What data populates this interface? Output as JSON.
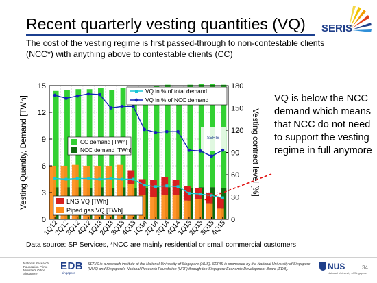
{
  "slide": {
    "title": "Recent quarterly vesting quantities (VQ)",
    "subtitle": "The cost of the vesting regime is first passed-through to non-contestable clients (NCC*) with anything above to contestable clients (CC)",
    "callout": "VQ is below the NCC demand which means that NCC do not need to support the vesting regime in full anymore",
    "source": "Data source: SP Services, *NCC are mainly residential or small commercial customers",
    "page_number": "34",
    "logo_text": "SERIS",
    "watermark_text": "SERIS"
  },
  "footer": {
    "nrf_text": "National Research Foundation Prime Minister's Office Singapore",
    "edb_text": "EDB",
    "edb_sub": "singapore",
    "description": "SERIS is a research institute at the National University of Singapore (NUS). SERIS is sponsored by the National University of Singapore (NUS) and Singapore's National Research Foundation (NRF) through the Singapore Economic Development Board (EDB).",
    "nus_text": "NUS",
    "nus_sub": "National University of Singapore"
  },
  "colors": {
    "cc": "#33d133",
    "ncc": "#0f6b0f",
    "lng": "#d71f1f",
    "piped": "#ff8c1a",
    "vq_total": "#19c6d6",
    "vq_ncc": "#1424b8",
    "title_rule": "#1b3f8f"
  },
  "chart_data": {
    "type": "bar",
    "title": "",
    "xlabel": "",
    "ylabel": "Vesting Quantity, Demand [TWh]",
    "y2label": "Vesting contract level [%]",
    "ylim": [
      0,
      15
    ],
    "y2lim": [
      0,
      180
    ],
    "yticks": [
      "0",
      "3",
      "6",
      "9",
      "12",
      "15"
    ],
    "y2ticks": [
      "0",
      "30",
      "60",
      "90",
      "120",
      "150",
      "180"
    ],
    "categories": [
      "1Q12",
      "2Q12",
      "3Q12",
      "4Q12",
      "1Q13",
      "2Q13",
      "3Q13",
      "4Q13",
      "1Q14",
      "2Q14",
      "3Q14",
      "4Q14",
      "1Q15",
      "2Q15",
      "3Q15",
      "4Q15"
    ],
    "grid": true,
    "legend_placement": "top-right; middle-left; bottom-left",
    "series": [
      {
        "name": "CC demand [TWh]",
        "kind": "bar",
        "values": [
          10.8,
          10.9,
          11.0,
          11.1,
          11.1,
          11.0,
          11.1,
          11.0,
          11.3,
          11.4,
          11.5,
          11.3,
          11.6,
          11.6,
          11.6,
          11.6
        ]
      },
      {
        "name": "NCC demand [TWh]",
        "kind": "bar",
        "values": [
          3.6,
          3.6,
          3.6,
          3.5,
          3.6,
          3.5,
          3.6,
          3.5,
          3.5,
          3.6,
          3.6,
          3.5,
          3.5,
          3.6,
          3.6,
          3.5
        ]
      },
      {
        "name": "LNG VQ [TWh]",
        "kind": "bar",
        "values": [
          0,
          0,
          0,
          0,
          0,
          0,
          0,
          1.5,
          1.8,
          1.9,
          2.0,
          1.7,
          1.6,
          1.2,
          1.2,
          1.3
        ]
      },
      {
        "name": "Piped gas VQ [TWh]",
        "kind": "bar",
        "values": [
          6.0,
          6.0,
          6.1,
          6.0,
          6.0,
          6.0,
          6.1,
          4.0,
          2.7,
          2.5,
          2.7,
          2.7,
          2.1,
          2.3,
          1.8,
          1.2
        ]
      },
      {
        "name": "VQ in % of total demand",
        "kind": "line",
        "axis": "y2",
        "values": [
          55,
          54,
          55,
          55,
          54,
          55,
          54,
          54,
          46,
          44,
          45,
          44,
          35,
          34,
          32,
          29
        ]
      },
      {
        "name": "VQ in % of NCC demand",
        "kind": "line",
        "axis": "y2",
        "values": [
          167,
          163,
          166,
          169,
          168,
          150,
          152,
          152,
          121,
          117,
          118,
          118,
          93,
          92,
          85,
          93
        ]
      }
    ]
  }
}
